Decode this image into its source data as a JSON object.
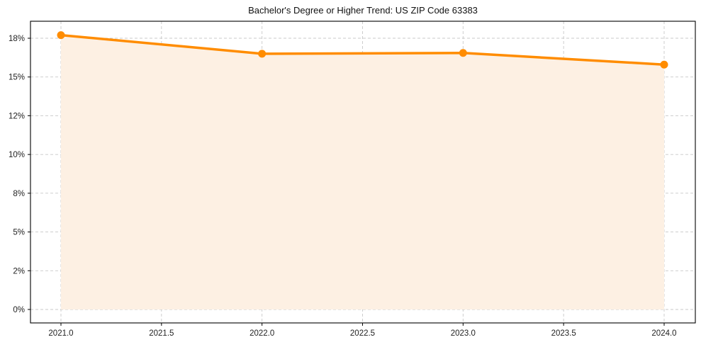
{
  "chart_data": {
    "type": "line",
    "title": "Bachelor's Degree or Higher Trend: US ZIP Code 63383",
    "xlabel": "",
    "ylabel": "",
    "x": [
      2021.0,
      2022.0,
      2023.0,
      2024.0
    ],
    "series": [
      {
        "name": "Bachelor's Degree or Higher (%)",
        "values": [
          17.7,
          16.5,
          16.55,
          15.8
        ],
        "color": "#ff8c00",
        "fill_color": "#fdf0e3"
      }
    ],
    "xlim": [
      2020.85,
      2024.15
    ],
    "ylim": [
      -0.9,
      19.0
    ],
    "x_ticks": [
      2021.0,
      2021.5,
      2022.0,
      2022.5,
      2023.0,
      2023.5,
      2024.0
    ],
    "x_tick_labels": [
      "2021.0",
      "2021.5",
      "2022.0",
      "2022.5",
      "2023.0",
      "2023.5",
      "2024.0"
    ],
    "y_ticks": [
      0,
      2.5,
      5,
      7.5,
      10,
      12.5,
      15,
      17.5
    ],
    "y_tick_labels": [
      "0%",
      "2%",
      "5%",
      "8%",
      "10%",
      "12%",
      "15%",
      "18%"
    ],
    "grid": true,
    "grid_style": "dashed",
    "legend": null,
    "markers": "circle",
    "area_fill": true
  }
}
